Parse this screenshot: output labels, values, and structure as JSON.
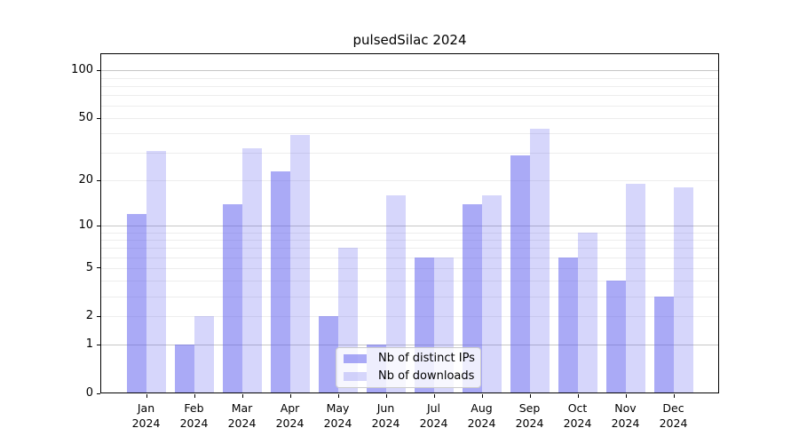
{
  "figure": {
    "title": "pulsedSilac 2024"
  },
  "chart_data": {
    "type": "bar",
    "title": "pulsedSilac 2024",
    "categories": [
      "Jan",
      "Feb",
      "Mar",
      "Apr",
      "May",
      "Jun",
      "Jul",
      "Aug",
      "Sep",
      "Oct",
      "Nov",
      "Dec"
    ],
    "year_label": "2024",
    "series": [
      {
        "name": "Nb of distinct IPs",
        "color": "#5555ed",
        "alpha": 0.5,
        "values": [
          12,
          1,
          14,
          23,
          2,
          1,
          6,
          14,
          29,
          6,
          4,
          3
        ]
      },
      {
        "name": "Nb of downloads",
        "color": "#5555ed",
        "alpha": 0.24,
        "values": [
          31,
          2,
          32,
          39,
          7,
          16,
          6,
          16,
          43,
          9,
          19,
          18
        ]
      }
    ],
    "xlabel": "",
    "ylabel": "",
    "y_axis": {
      "scale": "log1p",
      "ticks": [
        100,
        50,
        20,
        10,
        5,
        2,
        1,
        0
      ],
      "ylim": [
        0,
        128
      ],
      "major_gridlines": [
        1,
        10,
        100
      ],
      "minor_gridlines": [
        2,
        3,
        4,
        5,
        6,
        7,
        8,
        9,
        20,
        30,
        40,
        50,
        60,
        70,
        80,
        90
      ]
    },
    "legend": {
      "position": "lower center",
      "entries": [
        "Nb of distinct IPs",
        "Nb of downloads"
      ]
    },
    "grid": "both",
    "colors": {
      "bar_base": "#5555ed",
      "major_grid": "#c6c6c6",
      "minor_grid": "#ededed",
      "spine": "#000000",
      "text": "#000000",
      "legend_border": "#cccccc"
    }
  }
}
